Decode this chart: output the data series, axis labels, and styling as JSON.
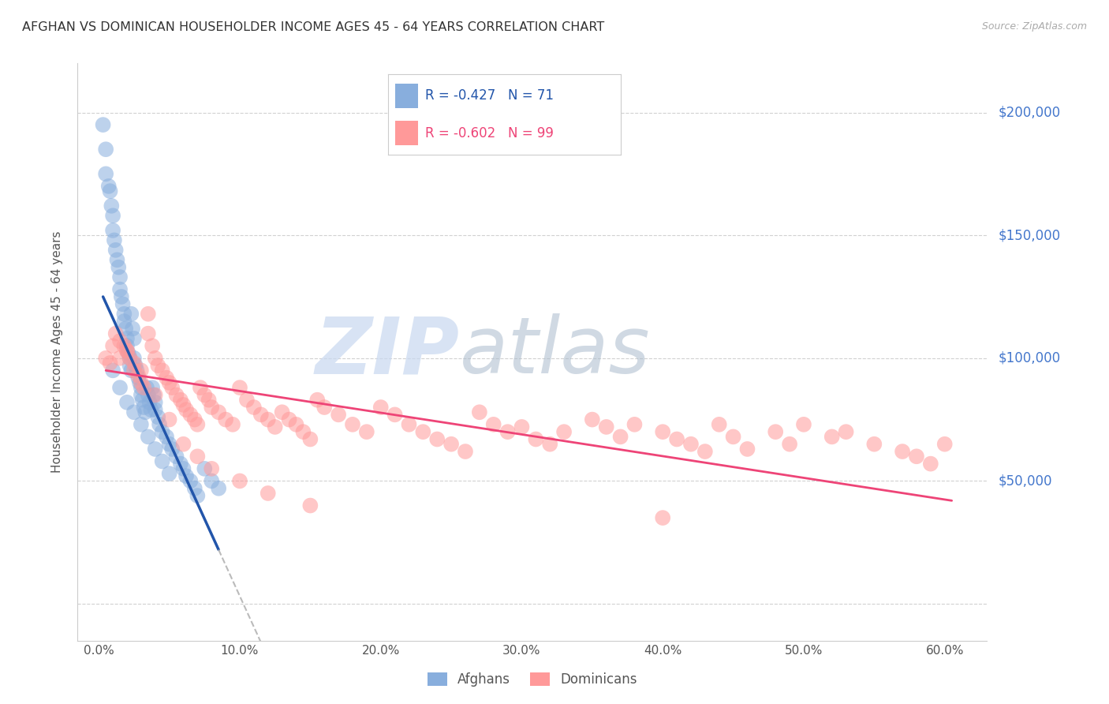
{
  "title": "AFGHAN VS DOMINICAN HOUSEHOLDER INCOME AGES 45 - 64 YEARS CORRELATION CHART",
  "source": "Source: ZipAtlas.com",
  "ylabel": "Householder Income Ages 45 - 64 years",
  "xlabel_ticks": [
    "0.0%",
    "10.0%",
    "20.0%",
    "30.0%",
    "40.0%",
    "50.0%",
    "60.0%"
  ],
  "xlabel_vals": [
    0.0,
    10.0,
    20.0,
    30.0,
    40.0,
    50.0,
    60.0
  ],
  "ytick_vals": [
    0,
    50000,
    100000,
    150000,
    200000
  ],
  "xlim": [
    -1.5,
    63
  ],
  "ylim": [
    -15000,
    220000
  ],
  "legend_blue_r": "R = -0.427",
  "legend_blue_n": "N = 71",
  "legend_pink_r": "R = -0.602",
  "legend_pink_n": "N = 99",
  "legend_label_blue": "Afghans",
  "legend_label_pink": "Dominicans",
  "watermark_zip": "ZIP",
  "watermark_atlas": "atlas",
  "blue_scatter_color": "#88AEDD",
  "pink_scatter_color": "#FF9999",
  "blue_line_color": "#2255AA",
  "pink_line_color": "#EE4477",
  "title_color": "#333333",
  "right_label_color": "#4477CC",
  "afghan_line_x0": 0.3,
  "afghan_line_x1": 8.5,
  "afghan_line_y0": 125000,
  "afghan_line_y1": 22000,
  "afghan_dash_x0": 8.5,
  "afghan_dash_x1": 22.0,
  "dominican_line_x0": 0.5,
  "dominican_line_x1": 60.5,
  "dominican_line_y0": 95000,
  "dominican_line_y1": 42000,
  "afghan_x": [
    0.3,
    0.5,
    0.5,
    0.7,
    0.8,
    0.9,
    1.0,
    1.0,
    1.1,
    1.2,
    1.3,
    1.4,
    1.5,
    1.5,
    1.6,
    1.7,
    1.8,
    1.8,
    1.9,
    2.0,
    2.0,
    2.1,
    2.2,
    2.2,
    2.3,
    2.3,
    2.4,
    2.5,
    2.5,
    2.6,
    2.7,
    2.8,
    2.9,
    3.0,
    3.0,
    3.1,
    3.2,
    3.3,
    3.4,
    3.5,
    3.6,
    3.7,
    3.8,
    3.9,
    4.0,
    4.0,
    4.2,
    4.3,
    4.5,
    4.8,
    5.0,
    5.2,
    5.5,
    5.8,
    6.0,
    6.2,
    6.5,
    6.8,
    7.0,
    7.5,
    8.0,
    8.5,
    1.0,
    1.5,
    2.0,
    2.5,
    3.0,
    3.5,
    4.0,
    4.5,
    5.0
  ],
  "afghan_y": [
    195000,
    185000,
    175000,
    170000,
    168000,
    162000,
    158000,
    152000,
    148000,
    144000,
    140000,
    137000,
    133000,
    128000,
    125000,
    122000,
    118000,
    115000,
    112000,
    108000,
    105000,
    102000,
    100000,
    97000,
    95000,
    118000,
    112000,
    108000,
    100000,
    97000,
    95000,
    92000,
    90000,
    88000,
    85000,
    83000,
    80000,
    78000,
    88000,
    85000,
    82000,
    79000,
    88000,
    85000,
    82000,
    79000,
    76000,
    73000,
    70000,
    68000,
    65000,
    63000,
    60000,
    57000,
    55000,
    52000,
    50000,
    47000,
    44000,
    55000,
    50000,
    47000,
    95000,
    88000,
    82000,
    78000,
    73000,
    68000,
    63000,
    58000,
    53000
  ],
  "dominican_x": [
    0.5,
    0.8,
    1.0,
    1.2,
    1.5,
    1.5,
    1.8,
    2.0,
    2.2,
    2.5,
    2.5,
    2.8,
    3.0,
    3.2,
    3.5,
    3.5,
    3.8,
    4.0,
    4.2,
    4.5,
    4.8,
    5.0,
    5.2,
    5.5,
    5.8,
    6.0,
    6.2,
    6.5,
    6.8,
    7.0,
    7.2,
    7.5,
    7.8,
    8.0,
    8.5,
    9.0,
    9.5,
    10.0,
    10.5,
    11.0,
    11.5,
    12.0,
    12.5,
    13.0,
    13.5,
    14.0,
    14.5,
    15.0,
    15.5,
    16.0,
    17.0,
    18.0,
    19.0,
    20.0,
    21.0,
    22.0,
    23.0,
    24.0,
    25.0,
    26.0,
    27.0,
    28.0,
    29.0,
    30.0,
    31.0,
    32.0,
    33.0,
    35.0,
    36.0,
    37.0,
    38.0,
    40.0,
    41.0,
    42.0,
    43.0,
    44.0,
    45.0,
    46.0,
    48.0,
    49.0,
    50.0,
    52.0,
    53.0,
    55.0,
    57.0,
    58.0,
    59.0,
    60.0,
    2.0,
    3.0,
    4.0,
    5.0,
    6.0,
    7.0,
    8.0,
    10.0,
    12.0,
    15.0,
    40.0
  ],
  "dominican_y": [
    100000,
    98000,
    105000,
    110000,
    107000,
    100000,
    105000,
    103000,
    100000,
    98000,
    95000,
    93000,
    90000,
    88000,
    118000,
    110000,
    105000,
    100000,
    97000,
    95000,
    92000,
    90000,
    88000,
    85000,
    83000,
    81000,
    79000,
    77000,
    75000,
    73000,
    88000,
    85000,
    83000,
    80000,
    78000,
    75000,
    73000,
    88000,
    83000,
    80000,
    77000,
    75000,
    72000,
    78000,
    75000,
    73000,
    70000,
    67000,
    83000,
    80000,
    77000,
    73000,
    70000,
    80000,
    77000,
    73000,
    70000,
    67000,
    65000,
    62000,
    78000,
    73000,
    70000,
    72000,
    67000,
    65000,
    70000,
    75000,
    72000,
    68000,
    73000,
    70000,
    67000,
    65000,
    62000,
    73000,
    68000,
    63000,
    70000,
    65000,
    73000,
    68000,
    70000,
    65000,
    62000,
    60000,
    57000,
    65000,
    103000,
    95000,
    85000,
    75000,
    65000,
    60000,
    55000,
    50000,
    45000,
    40000,
    35000
  ]
}
